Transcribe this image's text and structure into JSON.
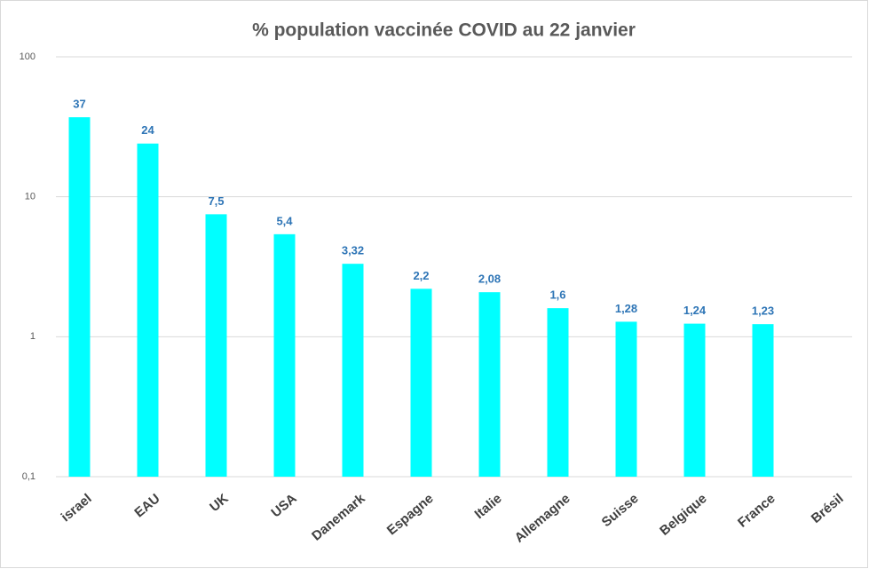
{
  "chart_data": {
    "type": "bar",
    "title": "% population vaccinée COVID au 22 janvier",
    "categories": [
      "israel",
      "EAU",
      "UK",
      "USA",
      "Danemark",
      "Espagne",
      "Italie",
      "Allemagne",
      "Suisse",
      "Belgique",
      "France",
      "Brésil"
    ],
    "values": [
      37,
      24,
      7.5,
      5.4,
      3.32,
      2.2,
      2.08,
      1.6,
      1.28,
      1.24,
      1.23,
      null
    ],
    "value_labels": [
      "37",
      "24",
      "7,5",
      "5,4",
      "3,32",
      "2,2",
      "2,08",
      "1,6",
      "1,28",
      "1,24",
      "1,23",
      null
    ],
    "color": "#00FFFF",
    "label_color": "#2E75B6",
    "ylim": [
      0.1,
      100
    ],
    "yticks": [
      {
        "value": 0.1,
        "label": "0,1"
      },
      1,
      10,
      100
    ],
    "log_scale": true,
    "grid": true
  }
}
